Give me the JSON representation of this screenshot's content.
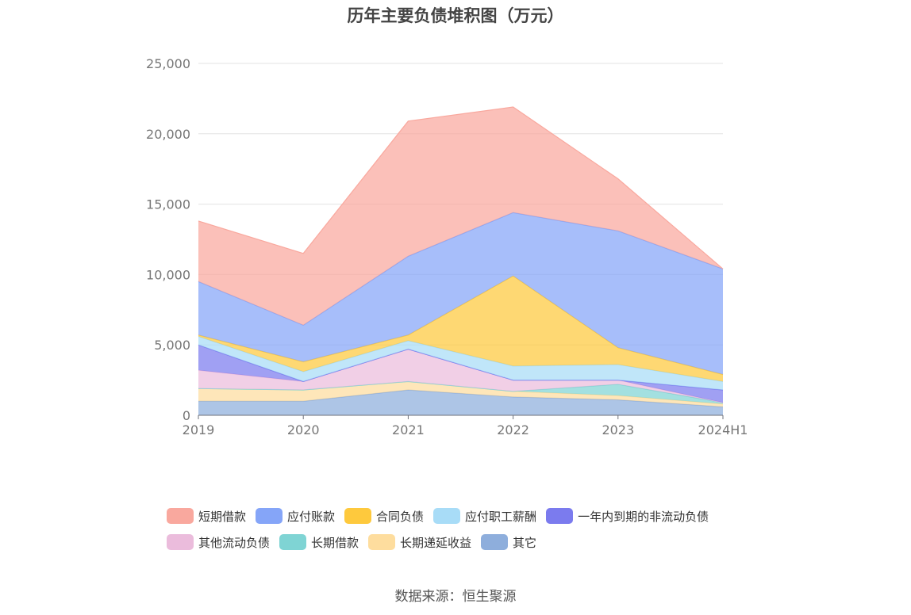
{
  "chart_data": {
    "type": "area",
    "stacked": true,
    "title": "历年主要负债堆积图（万元）",
    "x": [
      "2019",
      "2020",
      "2021",
      "2022",
      "2023",
      "2024H1"
    ],
    "ylim": [
      0,
      25000
    ],
    "yticks": [
      "0",
      "5,000",
      "10,000",
      "15,000",
      "20,000",
      "25,000"
    ],
    "grid": true,
    "legend_position": "bottom",
    "series": [
      {
        "name": "其它",
        "color": "#8eaedc",
        "values": [
          1000,
          1000,
          1800,
          1300,
          1100,
          600
        ]
      },
      {
        "name": "长期递延收益",
        "color": "#fedd9e",
        "values": [
          900,
          800,
          600,
          400,
          300,
          200
        ]
      },
      {
        "name": "长期借款",
        "color": "#7fd4d4",
        "values": [
          0,
          0,
          0,
          0,
          800,
          100
        ]
      },
      {
        "name": "其他流动负债",
        "color": "#ebbcdc",
        "values": [
          1300,
          600,
          2300,
          800,
          300,
          0
        ]
      },
      {
        "name": "一年内到期的非流动负债",
        "color": "#7b7bee",
        "values": [
          1800,
          0,
          0,
          0,
          0,
          900
        ]
      },
      {
        "name": "应付职工薪酬",
        "color": "#a8dcf7",
        "values": [
          600,
          700,
          600,
          1000,
          1100,
          600
        ]
      },
      {
        "name": "合同负债",
        "color": "#fec93d",
        "values": [
          100,
          700,
          400,
          6400,
          1200,
          500
        ]
      },
      {
        "name": "应付账款",
        "color": "#85a5f8",
        "values": [
          3800,
          2600,
          5600,
          4500,
          8300,
          7500
        ]
      },
      {
        "name": "短期借款",
        "color": "#f9a89e",
        "values": [
          4300,
          5100,
          9600,
          7500,
          3700,
          0
        ]
      }
    ]
  },
  "legend": {
    "row1": [
      {
        "label": "短期借款",
        "color": "#f9a89e"
      },
      {
        "label": "应付账款",
        "color": "#85a5f8"
      },
      {
        "label": "合同负债",
        "color": "#fec93d"
      },
      {
        "label": "应付职工薪酬",
        "color": "#a8dcf7"
      },
      {
        "label": "一年内到期的非流动负债",
        "color": "#7b7bee"
      }
    ],
    "row2": [
      {
        "label": "其他流动负债",
        "color": "#ebbcdc"
      },
      {
        "label": "长期借款",
        "color": "#7fd4d4"
      },
      {
        "label": "长期递延收益",
        "color": "#fedd9e"
      },
      {
        "label": "其它",
        "color": "#8eaedc"
      }
    ]
  },
  "source": "数据来源：恒生聚源"
}
